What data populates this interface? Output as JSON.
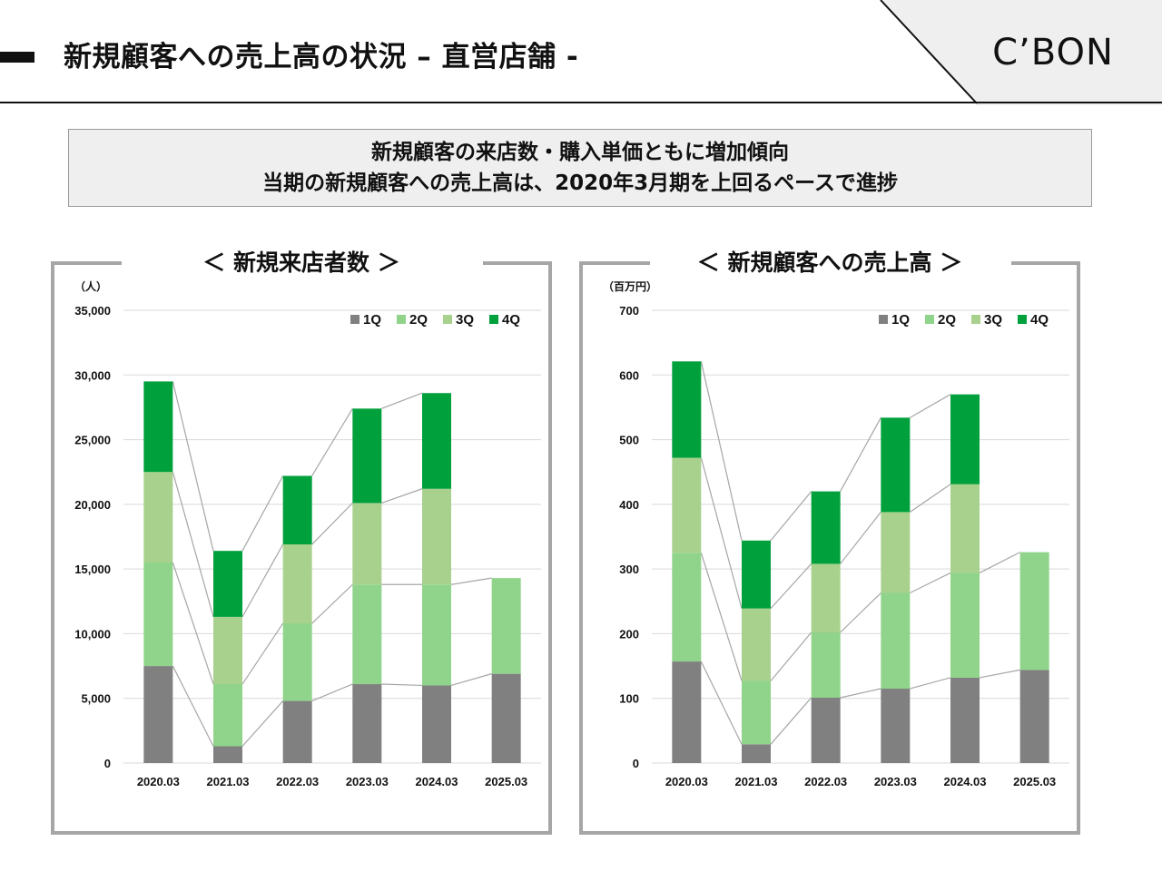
{
  "header": {
    "title": "新規顧客への売上高の状況 – 直営店舗 -",
    "logo": "C’BON"
  },
  "summary": {
    "line1": "新規顧客の来店数・購入単価ともに増加傾向",
    "line2": "当期の新規顧客への売上高は、2020年3月期を上回るペースで進捗"
  },
  "colors": {
    "q1": "#808080",
    "q2": "#8fd48a",
    "q3": "#a9d18e",
    "q4": "#00a03c",
    "connector": "#a6a6a6",
    "grid": "#d9d9d9",
    "panel_border": "#a6a6a6"
  },
  "chart_data": [
    {
      "type": "bar",
      "stacked": true,
      "title": "＜ 新規来店者数 ＞",
      "unit": "（人）",
      "ylim": [
        0,
        35000
      ],
      "yticks": [
        0,
        5000,
        10000,
        15000,
        20000,
        25000,
        30000,
        35000
      ],
      "ytick_labels": [
        "0",
        "5,000",
        "10,000",
        "15,000",
        "20,000",
        "25,000",
        "30,000",
        "35,000"
      ],
      "grid": true,
      "legend_position": "top-right",
      "categories": [
        "2020.03",
        "2021.03",
        "2022.03",
        "2023.03",
        "2024.03",
        "2025.03"
      ],
      "series": [
        {
          "name": "1Q",
          "values": [
            7500,
            1300,
            4800,
            6100,
            6000,
            6900
          ]
        },
        {
          "name": "2Q",
          "values": [
            8000,
            4800,
            6000,
            7700,
            7800,
            7400
          ]
        },
        {
          "name": "3Q",
          "values": [
            7000,
            5200,
            6100,
            6300,
            7400,
            0
          ]
        },
        {
          "name": "4Q",
          "values": [
            7000,
            5100,
            5300,
            7300,
            7400,
            0
          ]
        }
      ]
    },
    {
      "type": "bar",
      "stacked": true,
      "title": "＜ 新規顧客への売上高 ＞",
      "unit": "（百万円）",
      "ylim": [
        0,
        700
      ],
      "yticks": [
        0,
        100,
        200,
        300,
        400,
        500,
        600,
        700
      ],
      "ytick_labels": [
        "0",
        "100",
        "200",
        "300",
        "400",
        "500",
        "600",
        "700"
      ],
      "grid": true,
      "legend_position": "top-right",
      "categories": [
        "2020.03",
        "2021.03",
        "2022.03",
        "2023.03",
        "2024.03",
        "2025.03"
      ],
      "series": [
        {
          "name": "1Q",
          "values": [
            157,
            29,
            101,
            115,
            132,
            144
          ]
        },
        {
          "name": "2Q",
          "values": [
            168,
            98,
            101,
            148,
            162,
            182
          ]
        },
        {
          "name": "3Q",
          "values": [
            147,
            112,
            106,
            125,
            137,
            0
          ]
        },
        {
          "name": "4Q",
          "values": [
            149,
            105,
            112,
            146,
            139,
            0
          ]
        }
      ]
    }
  ]
}
